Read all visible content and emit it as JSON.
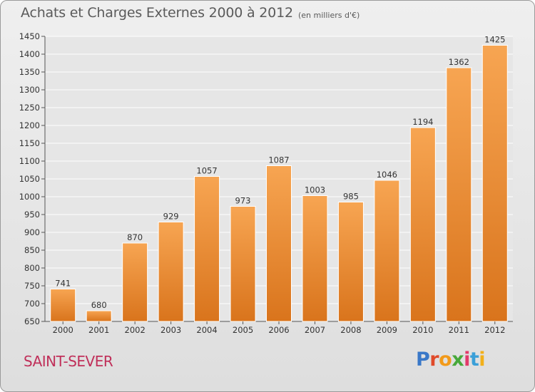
{
  "header": {
    "title": "Achats et Charges Externes 2000 à 2012",
    "subtitle": "(en milliers d'€)"
  },
  "footer": {
    "commune": "SAINT-SEVER",
    "brand": "Proxiti"
  },
  "colors": {
    "bar_top": "#f7a552",
    "bar_bottom": "#d9741c",
    "commune": "#c0305a",
    "brand": [
      "#3a78c8",
      "#e04a2a",
      "#f29a1a",
      "#47a83a",
      "#e23a6a",
      "#3a9fd8",
      "#f2b01a"
    ]
  },
  "chart_data": {
    "type": "bar",
    "title": "Achats et Charges Externes 2000 à 2012",
    "subtitle": "(en milliers d'€)",
    "categories": [
      "2000",
      "2001",
      "2002",
      "2003",
      "2004",
      "2005",
      "2006",
      "2007",
      "2008",
      "2009",
      "2010",
      "2011",
      "2012"
    ],
    "values": [
      741,
      680,
      870,
      929,
      1057,
      973,
      1087,
      1003,
      985,
      1046,
      1194,
      1362,
      1425
    ],
    "ylim": [
      650,
      1450
    ],
    "yticks": [
      650,
      700,
      750,
      800,
      850,
      900,
      950,
      1000,
      1050,
      1100,
      1150,
      1200,
      1250,
      1300,
      1350,
      1400,
      1450
    ],
    "grid": true,
    "data_labels": true
  }
}
